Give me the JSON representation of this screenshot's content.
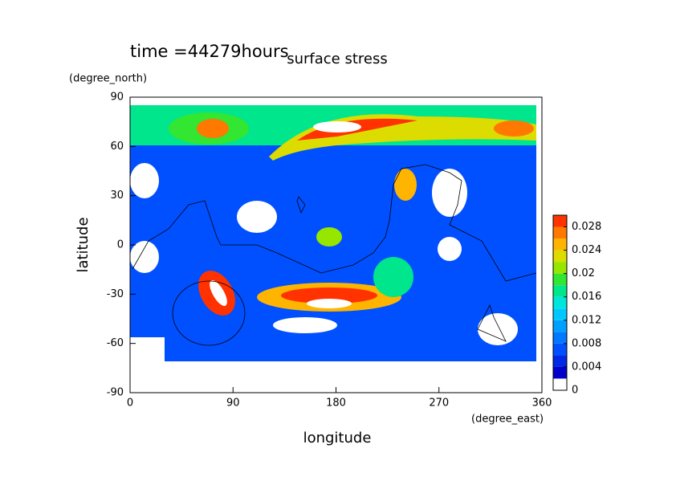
{
  "chart_data": {
    "type": "contour",
    "title": "surface stress",
    "subtitle": "time =44279hours",
    "xlabel": "longitude",
    "xunit": "(degree_east)",
    "ylabel": "latitude",
    "yunit": "(degree_north)",
    "xlim": [
      0,
      360
    ],
    "xticks": [
      0,
      90,
      180,
      270,
      360
    ],
    "ylim": [
      -90,
      90
    ],
    "yticks": [
      -90,
      -60,
      -30,
      0,
      30,
      60,
      90
    ],
    "clim": [
      0,
      0.03
    ],
    "cticks": [
      0,
      0.004,
      0.008,
      0.012,
      0.016,
      0.02,
      0.024,
      0.028
    ],
    "colors": [
      "#ffffff",
      "#0000c8",
      "#0028e6",
      "#0050ff",
      "#0078ff",
      "#00a0ff",
      "#00c8ff",
      "#00e6dc",
      "#00e68c",
      "#32e632",
      "#96e600",
      "#dcdc00",
      "#ffb400",
      "#ff7800",
      "#ff3200"
    ]
  }
}
